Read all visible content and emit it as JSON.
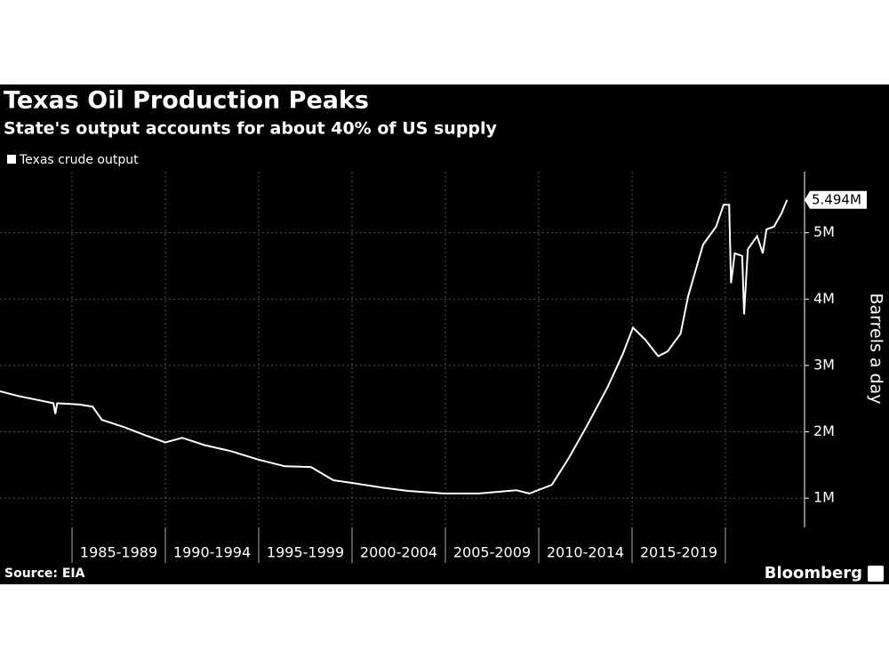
{
  "chart_data": {
    "type": "line",
    "title": "Texas Oil Production Peaks",
    "subtitle": "State's output accounts for about 40% of US supply",
    "y_label": "Barrels a day",
    "source": "Source: EIA",
    "brand": "Bloomberg",
    "xlim": [
      1981.14,
      2024.24
    ],
    "xticks": [
      1985,
      1990,
      1995,
      2000,
      2005,
      2010,
      2015,
      2020
    ],
    "period_labels": [
      "1985-1989",
      "1990-1994",
      "1995-1999",
      "2000-2004",
      "2005-2009",
      "2010-2014",
      "2015-2019"
    ],
    "ylim": [
      0.56,
      5.92
    ],
    "yticks": [
      {
        "value": 1,
        "label": "1M"
      },
      {
        "value": 2,
        "label": "2M"
      },
      {
        "value": 3,
        "label": "3M"
      },
      {
        "value": 4,
        "label": "4M"
      },
      {
        "value": 5,
        "label": "5M"
      }
    ],
    "grid": true,
    "x": [
      1981.14,
      1982.1,
      1984.0,
      1984.1,
      1984.2,
      1985.4,
      1986.1,
      1986.6,
      1987.8,
      1989.0,
      1990.0,
      1990.9,
      1992.1,
      1993.5,
      1995.0,
      1996.4,
      1997.8,
      1999.0,
      2000.0,
      2001.6,
      2003.0,
      2004.9,
      2006.8,
      2008.8,
      2009.5,
      2010.7,
      2011.6,
      2012.6,
      2013.7,
      2014.5,
      2015.05,
      2015.7,
      2016.4,
      2016.9,
      2017.6,
      2018.0,
      2018.8,
      2019.5,
      2019.9,
      2020.2,
      2020.3,
      2020.5,
      2020.9,
      2021.0,
      2021.2,
      2021.7,
      2022.0,
      2022.2,
      2022.6,
      2023.0,
      2023.3
    ],
    "series": [
      {
        "name": "Texas crude output",
        "color": "#ffffff",
        "values": [
          2.61,
          2.54,
          2.43,
          2.27,
          2.43,
          2.41,
          2.38,
          2.18,
          2.07,
          1.94,
          1.84,
          1.91,
          1.8,
          1.71,
          1.58,
          1.48,
          1.47,
          1.27,
          1.23,
          1.16,
          1.11,
          1.07,
          1.07,
          1.12,
          1.07,
          1.2,
          1.6,
          2.1,
          2.68,
          3.17,
          3.57,
          3.39,
          3.14,
          3.21,
          3.48,
          4.04,
          4.82,
          5.09,
          5.42,
          5.42,
          4.24,
          4.69,
          4.65,
          3.77,
          4.75,
          4.95,
          4.69,
          5.05,
          5.09,
          5.29,
          5.494
        ],
        "value_labels": [
          null,
          null,
          null,
          null,
          null,
          null,
          null,
          null,
          null,
          null,
          null,
          null,
          null,
          null,
          null,
          null,
          null,
          null,
          null,
          null,
          null,
          null,
          null,
          null,
          null,
          null,
          null,
          null,
          null,
          null,
          null,
          null,
          null,
          null,
          null,
          null,
          null,
          null,
          null,
          null,
          null,
          null,
          null,
          null,
          null,
          null,
          null,
          null,
          null,
          null,
          "5.494M"
        ]
      }
    ],
    "legend": "top-left"
  }
}
